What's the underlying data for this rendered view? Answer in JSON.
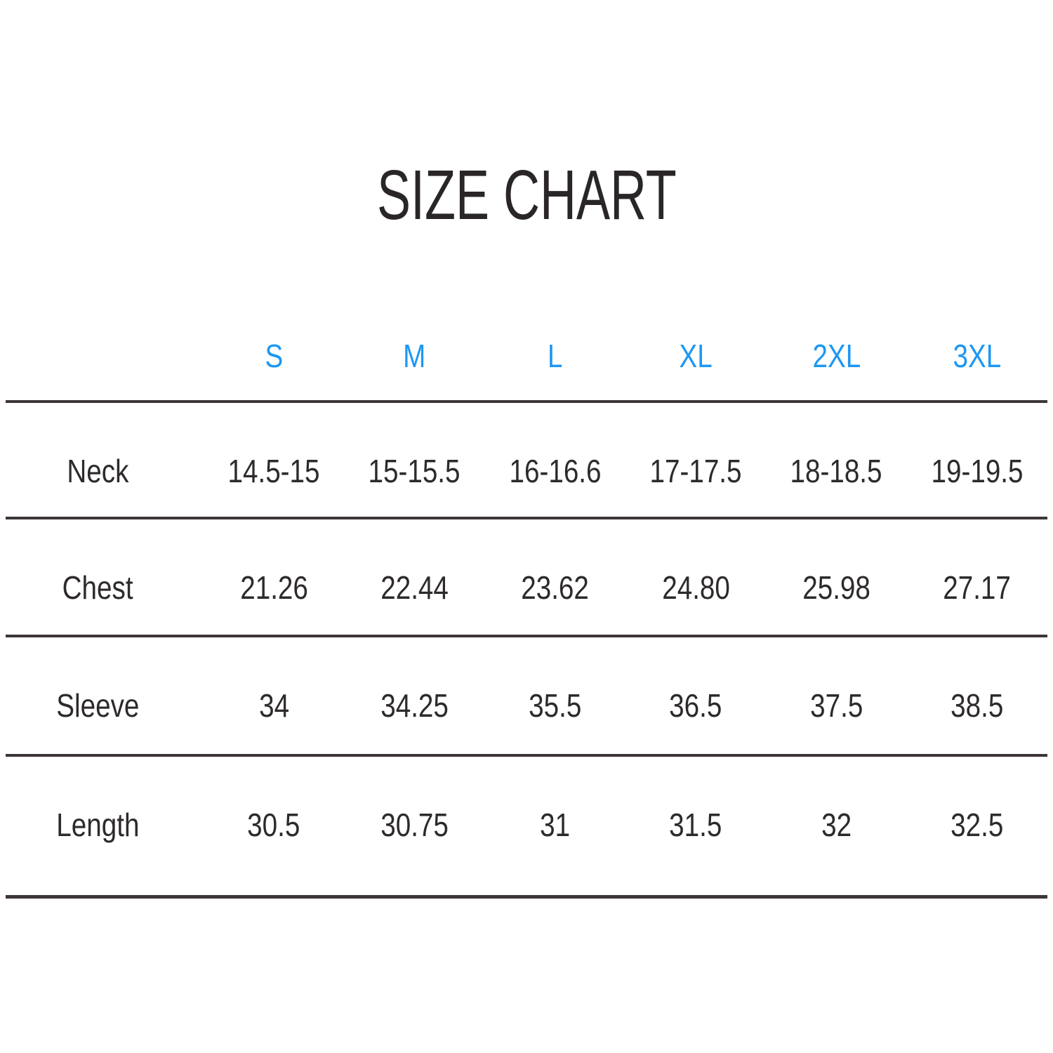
{
  "title": "SIZE CHART",
  "colors": {
    "accent_blue": "#1e97f3",
    "text_dark": "#2e2a2b",
    "divider_line": "#3c3638",
    "background": "#ffffff"
  },
  "chart_data": {
    "type": "table",
    "title": "SIZE CHART",
    "sizes": [
      "S",
      "M",
      "L",
      "XL",
      "2XL",
      "3XL"
    ],
    "rows": [
      {
        "label": "Neck",
        "values": [
          "14.5-15",
          "15-15.5",
          "16-16.6",
          "17-17.5",
          "18-18.5",
          "19-19.5"
        ]
      },
      {
        "label": "Chest",
        "values": [
          "21.26",
          "22.44",
          "23.62",
          "24.80",
          "25.98",
          "27.17"
        ]
      },
      {
        "label": "Sleeve",
        "values": [
          "34",
          "34.25",
          "35.5",
          "36.5",
          "37.5",
          "38.5"
        ]
      },
      {
        "label": "Length",
        "values": [
          "30.5",
          "30.75",
          "31",
          "31.5",
          "32",
          "32.5"
        ]
      }
    ],
    "layout": {
      "grid": "horizontal-rules-only",
      "legend": "none",
      "header_text_color": "#1e97f3",
      "body_text_color": "#2e2a2b"
    }
  }
}
